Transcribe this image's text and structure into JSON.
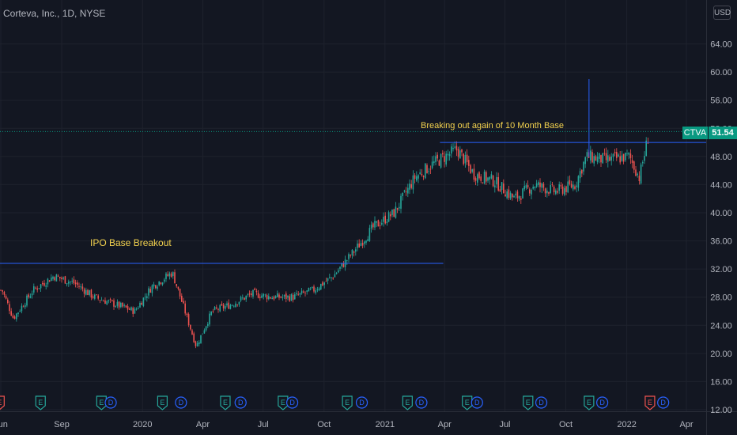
{
  "chart_title": "Corteva, Inc., 1D, NYSE",
  "currency": "USD",
  "symbol": "CTVA",
  "last_price": "51.54",
  "annotations": [
    {
      "text": "IPO Base Breakout"
    },
    {
      "text": "Breaking out again of 10 Month Base"
    }
  ],
  "colors": {
    "background": "#131722",
    "up": "#26a69a",
    "down": "#ef5350",
    "annotation_line": "#2962ff",
    "annotation_text": "#f2d14e",
    "grid": "#1e222d",
    "last_price": "#089981"
  },
  "chart_data": {
    "type": "candlestick",
    "x_ticks": [
      "Jun",
      "Sep",
      "2020",
      "Apr",
      "Jul",
      "Oct",
      "2021",
      "Apr",
      "Jul",
      "Oct",
      "2022",
      "Apr"
    ],
    "y_ticks": [
      "12.00",
      "16.00",
      "20.00",
      "24.00",
      "28.00",
      "32.00",
      "36.00",
      "40.00",
      "44.00",
      "48.00",
      "52.00",
      "56.00",
      "60.00",
      "64.00"
    ],
    "ylim": [
      12,
      68
    ],
    "price_series": [
      {
        "date": "2019-06-03",
        "close": 29
      },
      {
        "date": "2019-06-20",
        "close": 25
      },
      {
        "date": "2019-07-20",
        "close": 29
      },
      {
        "date": "2019-08-20",
        "close": 31
      },
      {
        "date": "2019-09-20",
        "close": 30
      },
      {
        "date": "2019-10-20",
        "close": 28
      },
      {
        "date": "2019-11-20",
        "close": 27
      },
      {
        "date": "2019-12-20",
        "close": 26
      },
      {
        "date": "2020-01-15",
        "close": 29.5
      },
      {
        "date": "2020-02-15",
        "close": 31.5
      },
      {
        "date": "2020-03-05",
        "close": 26
      },
      {
        "date": "2020-03-22",
        "close": 21
      },
      {
        "date": "2020-04-15",
        "close": 26
      },
      {
        "date": "2020-05-15",
        "close": 27
      },
      {
        "date": "2020-06-15",
        "close": 28.5
      },
      {
        "date": "2020-07-15",
        "close": 28
      },
      {
        "date": "2020-08-15",
        "close": 28
      },
      {
        "date": "2020-09-15",
        "close": 29
      },
      {
        "date": "2020-10-15",
        "close": 31
      },
      {
        "date": "2020-11-15",
        "close": 34.5
      },
      {
        "date": "2020-12-15",
        "close": 38
      },
      {
        "date": "2021-01-15",
        "close": 40
      },
      {
        "date": "2021-02-15",
        "close": 45
      },
      {
        "date": "2021-03-15",
        "close": 47
      },
      {
        "date": "2021-04-20",
        "close": 49
      },
      {
        "date": "2021-05-15",
        "close": 45.5
      },
      {
        "date": "2021-06-15",
        "close": 44.5
      },
      {
        "date": "2021-07-15",
        "close": 42
      },
      {
        "date": "2021-08-15",
        "close": 44
      },
      {
        "date": "2021-09-15",
        "close": 43
      },
      {
        "date": "2021-10-15",
        "close": 44
      },
      {
        "date": "2021-11-01",
        "close": 48
      },
      {
        "date": "2021-12-01",
        "close": 47.5
      },
      {
        "date": "2022-01-05",
        "close": 48
      },
      {
        "date": "2022-01-20",
        "close": 45
      },
      {
        "date": "2022-02-04",
        "close": 51.54
      }
    ],
    "spike": {
      "date": "2021-11-05",
      "high": 59
    },
    "events": [
      {
        "type": "E",
        "date": "2019-05-30",
        "tone": "red"
      },
      {
        "type": "E",
        "date": "2019-07-31",
        "tone": "green"
      },
      {
        "type": "E",
        "date": "2019-10-31",
        "tone": "green"
      },
      {
        "type": "D",
        "date": "2019-11-14",
        "tone": "blue"
      },
      {
        "type": "E",
        "date": "2020-01-31",
        "tone": "green"
      },
      {
        "type": "D",
        "date": "2020-02-28",
        "tone": "blue"
      },
      {
        "type": "E",
        "date": "2020-05-05",
        "tone": "green"
      },
      {
        "type": "D",
        "date": "2020-05-28",
        "tone": "blue"
      },
      {
        "type": "E",
        "date": "2020-07-31",
        "tone": "green"
      },
      {
        "type": "D",
        "date": "2020-08-14",
        "tone": "blue"
      },
      {
        "type": "E",
        "date": "2020-11-05",
        "tone": "green"
      },
      {
        "type": "D",
        "date": "2020-11-27",
        "tone": "blue"
      },
      {
        "type": "E",
        "date": "2021-02-04",
        "tone": "green"
      },
      {
        "type": "D",
        "date": "2021-02-25",
        "tone": "blue"
      },
      {
        "type": "E",
        "date": "2021-05-05",
        "tone": "green"
      },
      {
        "type": "D",
        "date": "2021-05-20",
        "tone": "blue"
      },
      {
        "type": "E",
        "date": "2021-08-05",
        "tone": "green"
      },
      {
        "type": "D",
        "date": "2021-08-25",
        "tone": "blue"
      },
      {
        "type": "E",
        "date": "2021-11-05",
        "tone": "green"
      },
      {
        "type": "D",
        "date": "2021-11-25",
        "tone": "blue"
      },
      {
        "type": "E",
        "date": "2022-02-05",
        "tone": "red"
      },
      {
        "type": "D",
        "date": "2022-02-25",
        "tone": "blue"
      }
    ],
    "lines": [
      {
        "from_date": "2019-05-01",
        "to_date": "2021-03-30",
        "price": 32.8
      },
      {
        "from_date": "2021-03-25",
        "to_date": "2022-05-01",
        "price": 50
      },
      {
        "from_date": "2019-05-01",
        "to_date": "2022-05-01",
        "price": 51.54,
        "style": "dotted"
      }
    ],
    "grid": true
  }
}
